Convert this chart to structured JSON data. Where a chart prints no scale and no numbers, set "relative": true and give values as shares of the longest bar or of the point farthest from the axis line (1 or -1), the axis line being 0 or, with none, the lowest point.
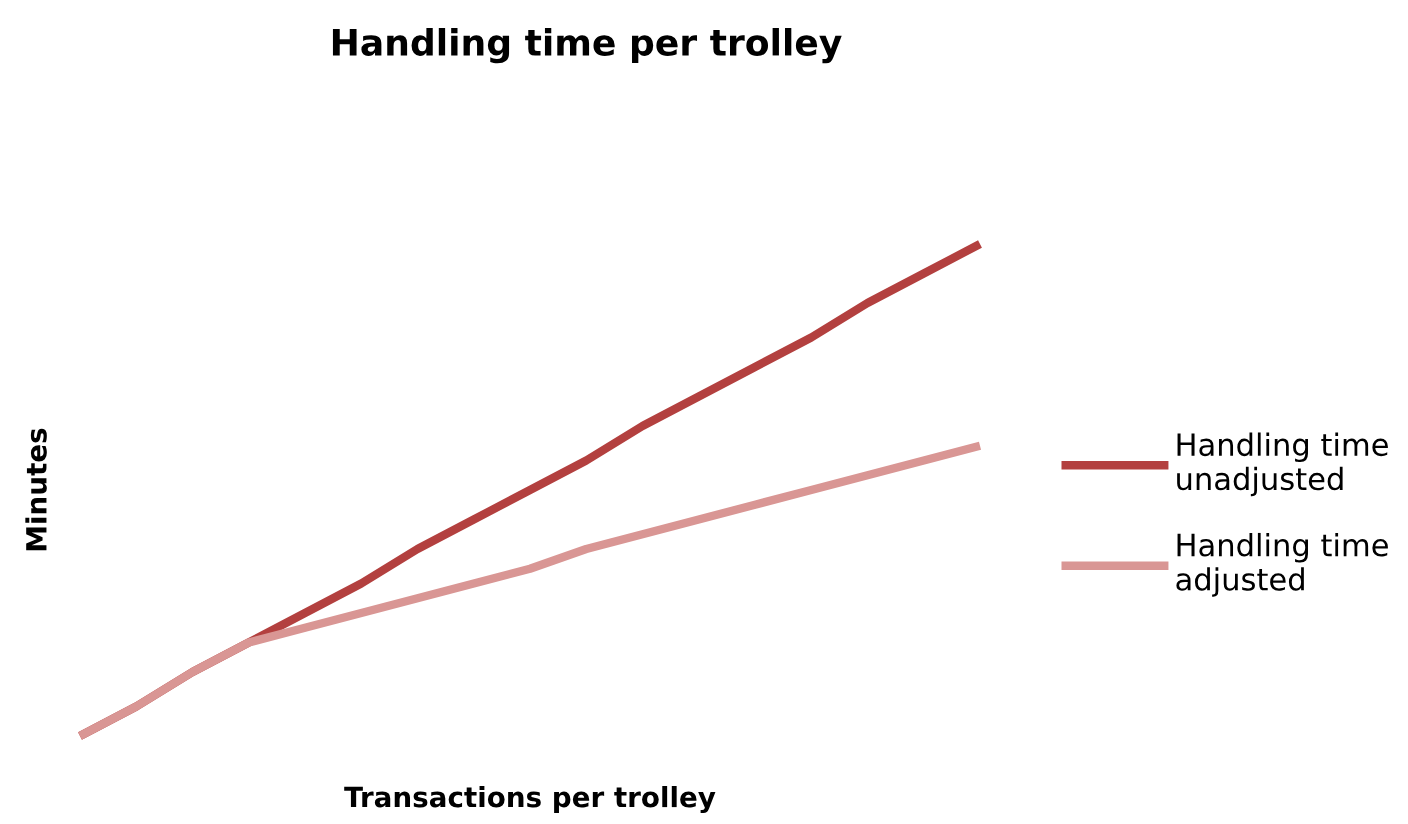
{
  "chart_data": {
    "type": "line",
    "title": "Handling time per trolley",
    "xlabel": "Transactions per trolley",
    "ylabel": "Minutes",
    "relative": true,
    "legend": "right",
    "marker": "none",
    "line_style": "solid",
    "categories": [
      null,
      null,
      null,
      null,
      null,
      null,
      null,
      null,
      null,
      null,
      null,
      null,
      null,
      null,
      null,
      null,
      null
    ],
    "series": [
      {
        "name": "Handling time unadjusted",
        "color": "#b3403f",
        "values": [
          0,
          0.06,
          0.13,
          0.19,
          0.25,
          0.31,
          0.38,
          0.44,
          0.5,
          0.56,
          0.63,
          0.69,
          0.75,
          0.81,
          0.88,
          0.94,
          1
        ]
      },
      {
        "name": "Handling time adjusted",
        "color": "#d99694",
        "values": [
          0,
          0.06,
          0.13,
          0.19,
          0.22,
          0.25,
          0.28,
          0.31,
          0.34,
          0.38,
          0.41,
          0.44,
          0.47,
          0.5,
          0.53,
          0.56,
          0.59
        ]
      }
    ]
  }
}
